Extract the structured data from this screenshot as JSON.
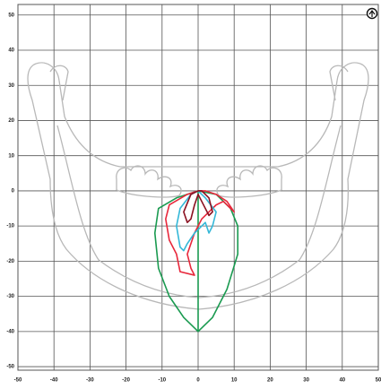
{
  "chart_data": {
    "type": "line",
    "xlim": [
      -50,
      50
    ],
    "ylim": [
      -51,
      53
    ],
    "xticks": [
      -50,
      -40,
      -30,
      -20,
      -10,
      0,
      10,
      20,
      30,
      40,
      50
    ],
    "yticks": [
      50,
      40,
      30,
      20,
      10,
      0,
      -10,
      -20,
      -30,
      -40,
      -50
    ],
    "grid": true,
    "series": [
      {
        "color": "#1a9a50",
        "x": [
          0,
          -6,
          -11,
          -12,
          -11,
          -8,
          -4,
          0,
          4,
          8,
          11,
          11,
          9,
          5,
          0
        ],
        "y": [
          0,
          -2,
          -5,
          -12,
          -22,
          -30,
          -36,
          -40,
          -36,
          -28,
          -18,
          -10,
          -5,
          -1,
          0
        ]
      },
      {
        "color": "#1a9a50",
        "x": [
          0,
          0
        ],
        "y": [
          0,
          -40
        ]
      },
      {
        "color": "#e8283c",
        "x": [
          0,
          -3,
          -8,
          -9,
          -8,
          -6,
          -5,
          -1,
          -2,
          -3,
          -1,
          1,
          3,
          5,
          7,
          9,
          10,
          8,
          5,
          2,
          0
        ],
        "y": [
          0,
          -1,
          -4,
          -8,
          -14,
          -18,
          -23,
          -24,
          -22,
          -18,
          -12,
          -8,
          -6,
          -4,
          -3,
          -5,
          -6,
          -3,
          -1,
          0,
          0
        ]
      },
      {
        "color": "#35b8d8",
        "x": [
          0,
          -2,
          -5,
          -6,
          -5,
          -4,
          -3,
          -1,
          1,
          2,
          3,
          4,
          5,
          2,
          0
        ],
        "y": [
          0,
          -1,
          -5,
          -10,
          -16,
          -17,
          -15,
          -12,
          -10,
          -9,
          -12,
          -10,
          -6,
          -2,
          0
        ]
      },
      {
        "color": "#8a1020",
        "x": [
          0,
          -2,
          -4,
          -3,
          -2,
          -1,
          0,
          1,
          3,
          4,
          3,
          1,
          0
        ],
        "y": [
          0,
          -1,
          -6,
          -9,
          -8,
          -4,
          -1,
          -3,
          -7,
          -6,
          -2,
          0,
          0
        ]
      }
    ]
  }
}
